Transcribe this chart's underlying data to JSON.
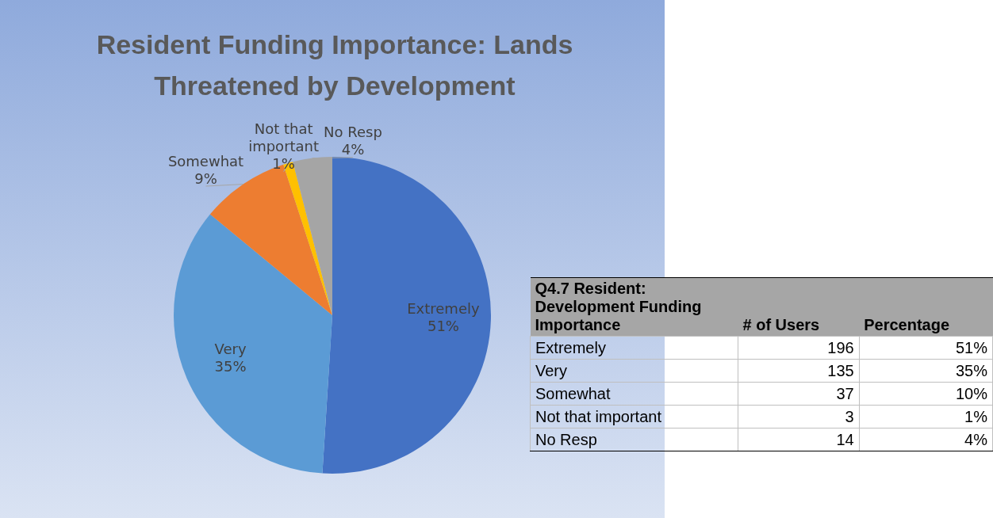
{
  "chart_data": [
    {
      "type": "pie",
      "title": "Resident Funding Importance: Lands Threatened by Development",
      "categories": [
        "Extremely",
        "Very",
        "Somewhat",
        "Not that important",
        "No Resp"
      ],
      "values": [
        51,
        35,
        9,
        1,
        4
      ],
      "value_labels": [
        "51%",
        "35%",
        "9%",
        "1%",
        "4%"
      ],
      "colors": [
        "#4472c4",
        "#5b9bd5",
        "#ed7d31",
        "#ffc000",
        "#a5a5a5"
      ],
      "legend": false
    },
    {
      "type": "other",
      "title": "Q4.7 Resident: Development Funding Importance",
      "categories": [
        "Extremely",
        "Very",
        "Somewhat",
        "Not that important",
        "No Resp"
      ],
      "series": [
        {
          "name": "# of Users",
          "values": [
            196,
            135,
            37,
            3,
            14
          ]
        },
        {
          "name": "Percentage",
          "values": [
            51,
            35,
            10,
            1,
            4
          ],
          "value_labels": [
            "51%",
            "35%",
            "10%",
            "1%",
            "4%"
          ]
        }
      ],
      "data_labels": true
    }
  ]
}
